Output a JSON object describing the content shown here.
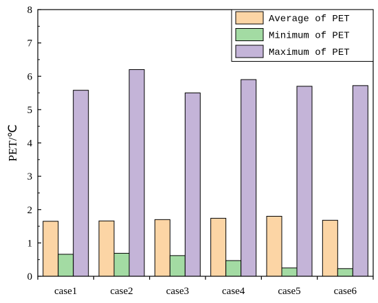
{
  "chart_data": {
    "type": "bar",
    "categories": [
      "case1",
      "case2",
      "case3",
      "case4",
      "case5",
      "case6"
    ],
    "series": [
      {
        "name": "Average of PET",
        "color": "#fcd5a5",
        "values": [
          1.65,
          1.66,
          1.7,
          1.74,
          1.8,
          1.68
        ]
      },
      {
        "name": "Minimum of PET",
        "color": "#a3dba3",
        "values": [
          0.66,
          0.69,
          0.62,
          0.47,
          0.25,
          0.23
        ]
      },
      {
        "name": "Maximum of PET",
        "color": "#c4b4d8",
        "values": [
          5.58,
          6.2,
          5.5,
          5.9,
          5.7,
          5.72
        ]
      }
    ],
    "ylabel": "PET/℃",
    "xlabel": "",
    "title": "",
    "ylim": [
      0,
      8
    ],
    "yticks": [
      0,
      1,
      2,
      3,
      4,
      5,
      6,
      7,
      8
    ],
    "grid": false,
    "legend_position": "top-right"
  }
}
